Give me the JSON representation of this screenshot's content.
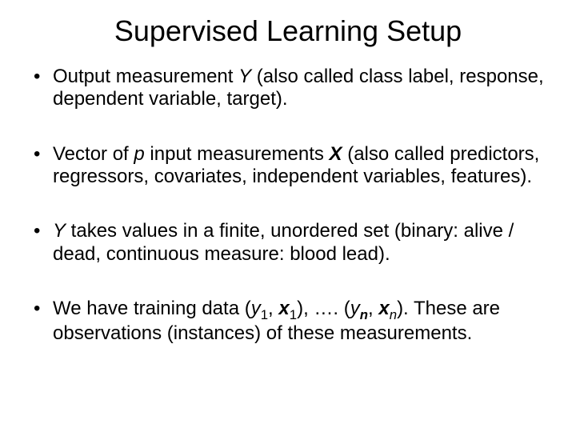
{
  "title": "Supervised Learning Setup",
  "b1": {
    "t1": "Output measurement ",
    "Y": "Y",
    "t2": " (also called class label, response, dependent variable, target)."
  },
  "b2": {
    "t1": "Vector of ",
    "p": "p",
    "t2": " input measurements ",
    "X": "X",
    "t3": " (also called predictors, regressors, covariates, independent variables, features)."
  },
  "b3": {
    "sp": " ",
    "Y": "Y",
    "t1": " takes values in a finite, unordered set (binary: alive / dead, continuous measure: blood lead)."
  },
  "b4": {
    "t1": "We have training data (",
    "y1": "y",
    "s1": "1",
    "c1": ", ",
    "x1": "x",
    "s1b": "1",
    "t2": "), …. (",
    "yn": "y",
    "sn": "n",
    "c2": ", ",
    "xn": "x",
    "snb": "n",
    "t3": "). These are observations (instances) of these measurements."
  }
}
